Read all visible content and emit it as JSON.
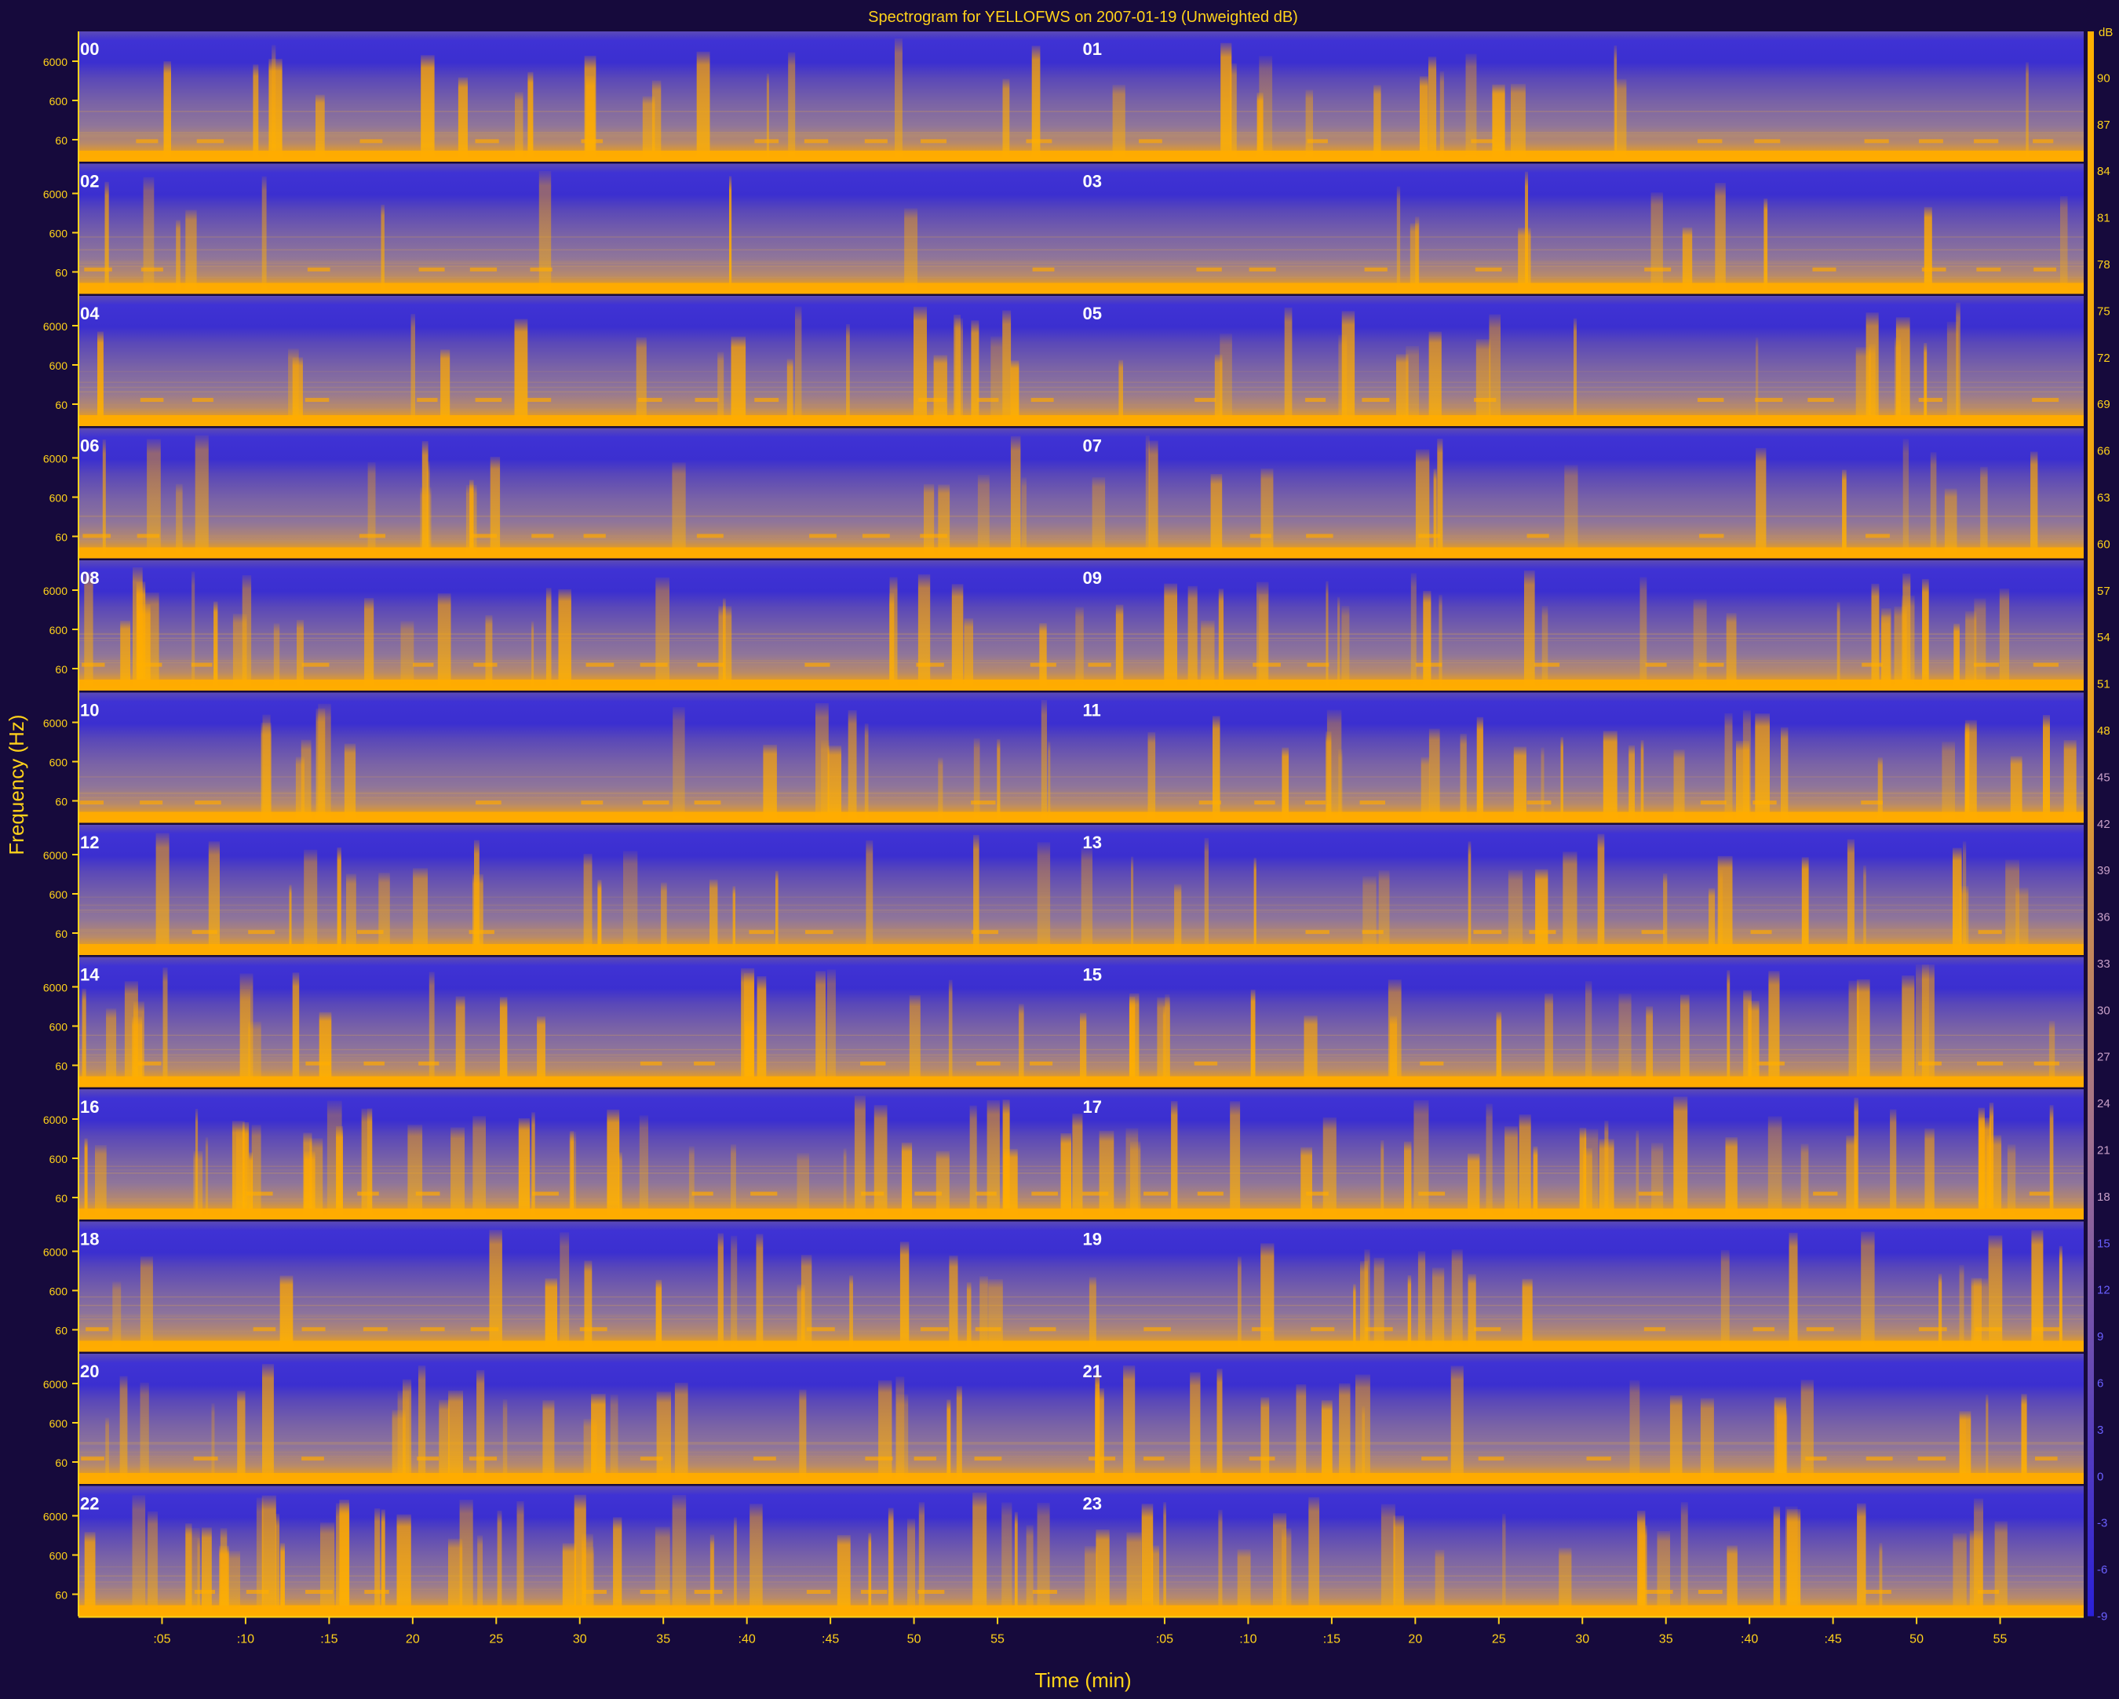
{
  "title": "Spectrogram for YELLOFWS on 2007-01-19 (Unweighted dB)",
  "colors": {
    "background": "#160a3c",
    "low": "#3b2fd0",
    "mid": "#8a6fa0",
    "high": "#ffa800",
    "text": "#ffd21a",
    "rows": [
      "#a0a0b8",
      "#a8a9b2",
      "#b0b2ac",
      "#b7bba5",
      "#bfc49f",
      "#c7cd99",
      "#ced693",
      "#d6df8d",
      "#dee887",
      "#e5f181",
      "#edfa7b",
      "#f5ff75"
    ]
  },
  "chart_data": {
    "type": "heatmap",
    "title": "Spectrogram for YELLOFWS on 2007-01-19 (Unweighted dB)",
    "xlabel": "Time (min)",
    "ylabel": "Frequency (Hz)",
    "y_scale": "log",
    "y_ticks": [
      "6000",
      "600",
      "60"
    ],
    "x_ticks": [
      ":05",
      ":10",
      ":15",
      "20",
      "25",
      "30",
      "35",
      ":40",
      ":45",
      "50",
      "55"
    ],
    "hours": [
      "00",
      "01",
      "02",
      "03",
      "04",
      "05",
      "06",
      "07",
      "08",
      "09",
      "10",
      "11",
      "12",
      "13",
      "14",
      "15",
      "16",
      "17",
      "18",
      "19",
      "20",
      "21",
      "22",
      "23"
    ],
    "colorbar": {
      "label": "dB",
      "ticks": [
        "90",
        "87",
        "84",
        "81",
        "78",
        "75",
        "72",
        "69",
        "66",
        "63",
        "60",
        "57",
        "54",
        "51",
        "48",
        "45",
        "42",
        "39",
        "36",
        "33",
        "30",
        "27",
        "24",
        "21",
        "18",
        "15",
        "12",
        "9",
        "6",
        "3",
        "0",
        "-3",
        "-6",
        "-9"
      ],
      "range": [
        -9,
        93
      ]
    }
  }
}
